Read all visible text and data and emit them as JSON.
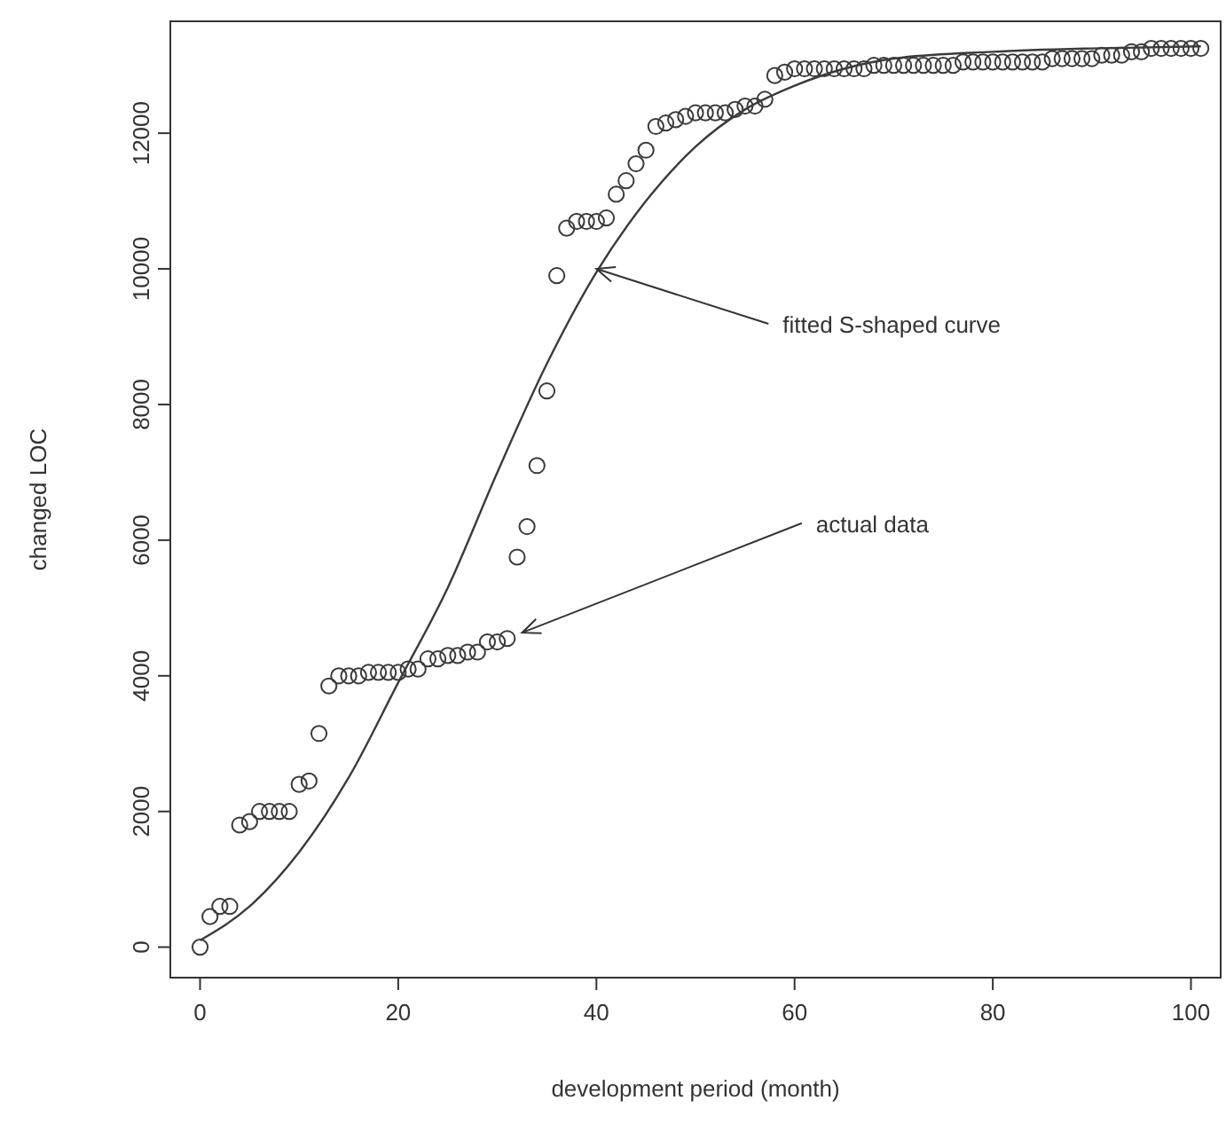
{
  "chart_data": {
    "type": "scatter",
    "xlabel": "development period (month)",
    "ylabel": "changed LOC",
    "xlim": [
      -3,
      103
    ],
    "ylim": [
      -450,
      13650
    ],
    "xticks": [
      0,
      20,
      40,
      60,
      80,
      100
    ],
    "yticks": [
      0,
      2000,
      4000,
      6000,
      8000,
      10000,
      12000
    ],
    "grid": false,
    "series": [
      {
        "marker": "circle",
        "color": "#3a3a3a",
        "x": [
          0,
          1,
          2,
          3,
          4,
          5,
          6,
          7,
          8,
          9,
          10,
          11,
          12,
          13,
          14,
          15,
          16,
          17,
          18,
          19,
          20,
          21,
          22,
          23,
          24,
          25,
          26,
          27,
          28,
          29,
          30,
          31,
          32,
          33,
          34,
          35,
          36,
          37,
          38,
          39,
          40,
          41,
          42,
          43,
          44,
          45,
          46,
          47,
          48,
          49,
          50,
          51,
          52,
          53,
          54,
          55,
          56,
          57,
          58,
          59,
          60,
          61,
          62,
          63,
          64,
          65,
          66,
          67,
          68,
          69,
          70,
          71,
          72,
          73,
          74,
          75,
          76,
          77,
          78,
          79,
          80,
          81,
          82,
          83,
          84,
          85,
          86,
          87,
          88,
          89,
          90,
          91,
          92,
          93,
          94,
          95,
          96,
          97,
          98,
          99,
          100,
          101
        ],
        "values": [
          0,
          450,
          600,
          600,
          1800,
          1850,
          2000,
          2000,
          2000,
          2000,
          2400,
          2450,
          3150,
          3850,
          4000,
          4000,
          4000,
          4050,
          4050,
          4050,
          4050,
          4100,
          4100,
          4250,
          4250,
          4300,
          4300,
          4350,
          4350,
          4500,
          4500,
          4550,
          5750,
          6200,
          7100,
          8200,
          9900,
          10600,
          10700,
          10700,
          10700,
          10750,
          11100,
          11300,
          11550,
          11750,
          12100,
          12150,
          12200,
          12250,
          12300,
          12300,
          12300,
          12300,
          12350,
          12400,
          12400,
          12500,
          12850,
          12900,
          12950,
          12950,
          12950,
          12950,
          12950,
          12950,
          12950,
          12950,
          13000,
          13000,
          13000,
          13000,
          13000,
          13000,
          13000,
          13000,
          13000,
          13050,
          13050,
          13050,
          13050,
          13050,
          13050,
          13050,
          13050,
          13050,
          13100,
          13100,
          13100,
          13100,
          13100,
          13150,
          13150,
          13150,
          13200,
          13200,
          13250,
          13250,
          13250,
          13250,
          13250,
          13250
        ]
      },
      {
        "type": "line",
        "marker": "none",
        "line_style": "solid",
        "color": "#3a3a3a",
        "x": [
          0,
          5,
          10,
          15,
          20,
          25,
          30,
          35,
          40,
          45,
          50,
          55,
          60,
          65,
          70,
          80,
          90,
          101
        ],
        "values": [
          100,
          600,
          1400,
          2500,
          3900,
          5300,
          7000,
          8600,
          9950,
          11000,
          11800,
          12350,
          12700,
          12950,
          13100,
          13200,
          13250,
          13280
        ]
      }
    ],
    "annotations": [
      {
        "text": "fitted S-shaped curve",
        "x": 40,
        "y": 10000
      },
      {
        "text": "actual data",
        "x": 31,
        "y": 4550
      }
    ]
  }
}
